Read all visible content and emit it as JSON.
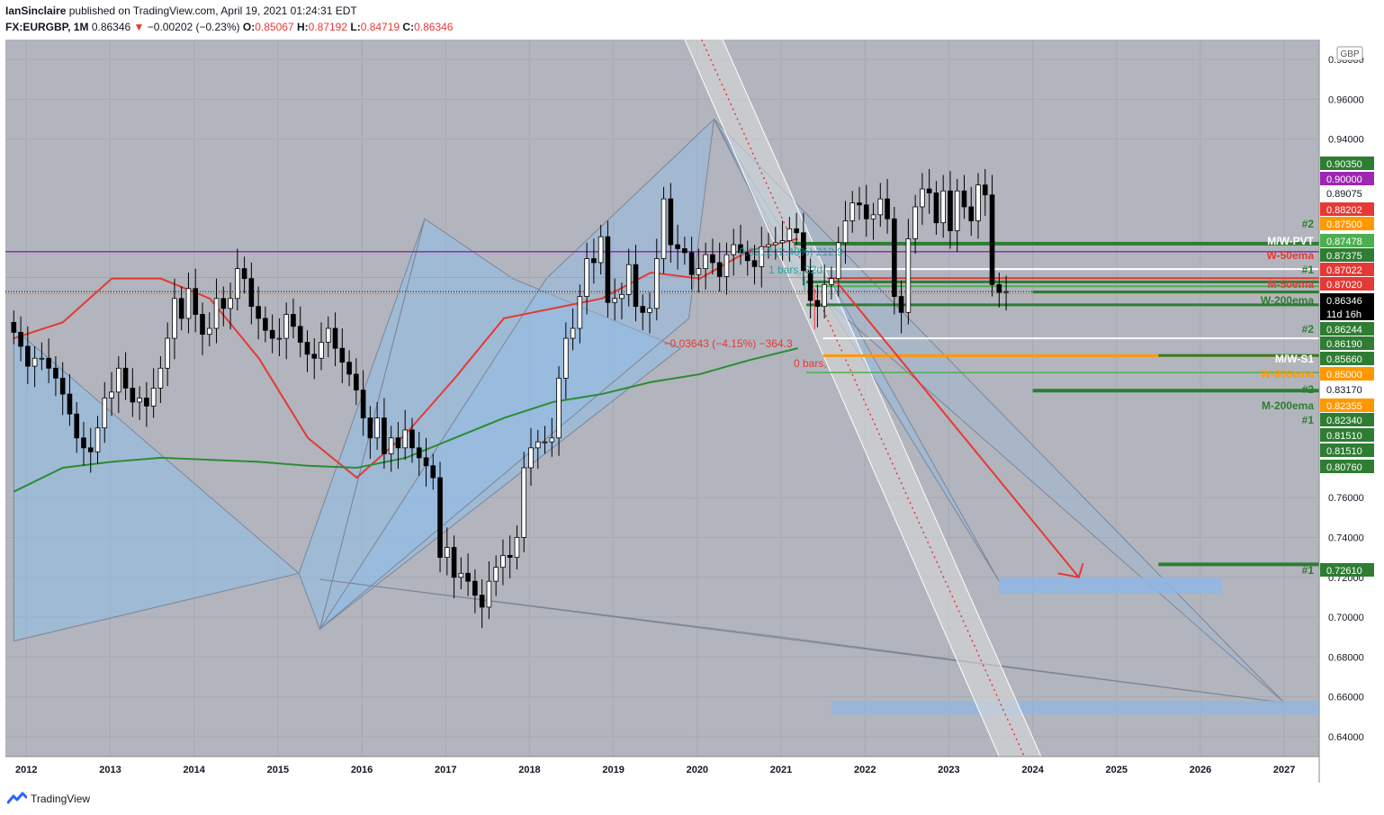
{
  "header": {
    "publisher": "IanSinclaire",
    "published_text": "published on TradingView.com, April 19, 2021 01:24:31 EDT",
    "symbol": "FX:EURGBP, 1M",
    "last": "0.86346",
    "change": "−0.00202 (−0.23%)",
    "o_label": "O:",
    "o_value": "0.85067",
    "h_label": "H:",
    "h_value": "0.87192",
    "l_label": "L:",
    "l_value": "0.84719",
    "c_label": "C:",
    "c_value": "0.86346"
  },
  "footer": {
    "brand": "TradingView"
  },
  "colors": {
    "background": "#b2b5be",
    "up": "#ffffff",
    "down": "#000000",
    "ema50": "#e53935",
    "ema200": "#2e8b34",
    "pattern": "#90bde8",
    "purple": "#9c27b0",
    "orange": "#ff9800",
    "green": "#2e7d32"
  },
  "chart_data": {
    "type": "candlestick",
    "currency": "GBP",
    "x_axis": [
      "2012",
      "2013",
      "2014",
      "2015",
      "2016",
      "2017",
      "2018",
      "2019",
      "2020",
      "2021",
      "2022",
      "2023",
      "2024",
      "2025",
      "2026",
      "2027"
    ],
    "y_axis": [
      "0.98000",
      "0.96000",
      "0.94000",
      "0.76000",
      "0.74000",
      "0.72000",
      "0.70000",
      "0.68000",
      "0.66000",
      "0.64000"
    ],
    "y_range": [
      0.63,
      0.99
    ],
    "x_range": [
      "2011-10",
      "2027-06"
    ],
    "monthly_closes": [
      0.843,
      0.836,
      0.826,
      0.83,
      0.83,
      0.825,
      0.82,
      0.812,
      0.802,
      0.79,
      0.785,
      0.783,
      0.795,
      0.81,
      0.813,
      0.825,
      0.815,
      0.808,
      0.81,
      0.806,
      0.815,
      0.825,
      0.84,
      0.86,
      0.85,
      0.865,
      0.852,
      0.842,
      0.845,
      0.86,
      0.855,
      0.86,
      0.875,
      0.87,
      0.856,
      0.85,
      0.844,
      0.84,
      0.84,
      0.852,
      0.846,
      0.838,
      0.832,
      0.83,
      0.838,
      0.845,
      0.835,
      0.828,
      0.822,
      0.814,
      0.8,
      0.79,
      0.8,
      0.782,
      0.79,
      0.785,
      0.794,
      0.785,
      0.78,
      0.776,
      0.77,
      0.73,
      0.735,
      0.72,
      0.722,
      0.718,
      0.711,
      0.705,
      0.718,
      0.725,
      0.731,
      0.73,
      0.74,
      0.775,
      0.785,
      0.788,
      0.788,
      0.79,
      0.82,
      0.84,
      0.845,
      0.861,
      0.88,
      0.878,
      0.891,
      0.858,
      0.86,
      0.862,
      0.877,
      0.856,
      0.853,
      0.855,
      0.88,
      0.91,
      0.887,
      0.885,
      0.883,
      0.872,
      0.875,
      0.882,
      0.878,
      0.871,
      0.882,
      0.887,
      0.883,
      0.879,
      0.876,
      0.886,
      0.887,
      0.888,
      0.889,
      0.895,
      0.893,
      0.874,
      0.859,
      0.856,
      0.867,
      0.87,
      0.888,
      0.899,
      0.908,
      0.907,
      0.9,
      0.902,
      0.91,
      0.9,
      0.861,
      0.853,
      0.89,
      0.906,
      0.915,
      0.913,
      0.898,
      0.914,
      0.894,
      0.914,
      0.906,
      0.899,
      0.917,
      0.912,
      0.867,
      0.863,
      0.86346
    ],
    "series": [
      {
        "name": "50",
        "values": [
          0.84,
          0.848,
          0.87,
          0.87,
          0.86,
          0.83,
          0.79,
          0.77,
          0.792,
          0.82,
          0.85,
          0.855,
          0.86,
          0.873,
          0.87,
          0.884,
          0.89
        ]
      },
      {
        "name": "200",
        "values": [
          0.763,
          0.775,
          0.778,
          0.78,
          0.779,
          0.778,
          0.776,
          0.775,
          0.78,
          0.79,
          0.8,
          0.808,
          0.812,
          0.818,
          0.822,
          0.829,
          0.835
        ]
      }
    ],
    "price_levels": [
      {
        "value": "0.90350",
        "label": "",
        "color": "#2e7d32"
      },
      {
        "value": "0.90000",
        "label": "",
        "color": "#9c27b0"
      },
      {
        "value": "0.89075",
        "label": "",
        "color": "#ffffff"
      },
      {
        "value": "0.88202",
        "label": "",
        "color": "#e53935"
      },
      {
        "value": "0.87500",
        "label": "#2",
        "color": "#ff9800"
      },
      {
        "value": "0.87478",
        "label": "M/W-PVT",
        "color": "#4caf50"
      },
      {
        "value": "0.87375",
        "label": "W-50ema",
        "color": "#2e7d32"
      },
      {
        "value": "0.87022",
        "label": "#1",
        "color": "#e53935"
      },
      {
        "value": "0.87020",
        "label": "M-50ema",
        "color": "#e53935"
      },
      {
        "value": "0.86346",
        "label": "W-200ema",
        "color": "#000000",
        "sub": "11d 16h"
      },
      {
        "value": "0.86244",
        "label": "#2",
        "color": "#2e7d32"
      },
      {
        "value": "0.86190",
        "label": "",
        "color": "#2e7d32"
      },
      {
        "value": "0.85660",
        "label": "M/W-S1",
        "color": "#2e7d32"
      },
      {
        "value": "0.85000",
        "label": "W-800ema",
        "color": "#ff9800"
      },
      {
        "value": "0.83170",
        "label": "#2",
        "color": "#ffffff"
      },
      {
        "value": "0.82355",
        "label": "M-200ema",
        "color": "#ff9800"
      },
      {
        "value": "0.82340",
        "label": "#1",
        "color": "#2e7d32"
      },
      {
        "value": "0.81510",
        "label": "",
        "color": "#2e7d32"
      },
      {
        "value": "0.81510",
        "label": "",
        "color": "#2e7d32"
      },
      {
        "value": "0.80760",
        "label": "",
        "color": "#2e7d32"
      },
      {
        "value": "0.72610",
        "label": "#1",
        "color": "#2e7d32"
      }
    ],
    "annotations": [
      {
        "text": "0.0212 (2.48%) 212.9",
        "color": "#26a69a"
      },
      {
        "text": "1 bars, 32d",
        "color": "#26a69a"
      },
      {
        "text": "−0.03643 (−4.15%) −364.3",
        "color": "#e53935"
      },
      {
        "text": "0 bars,",
        "color": "#e53935"
      }
    ]
  }
}
